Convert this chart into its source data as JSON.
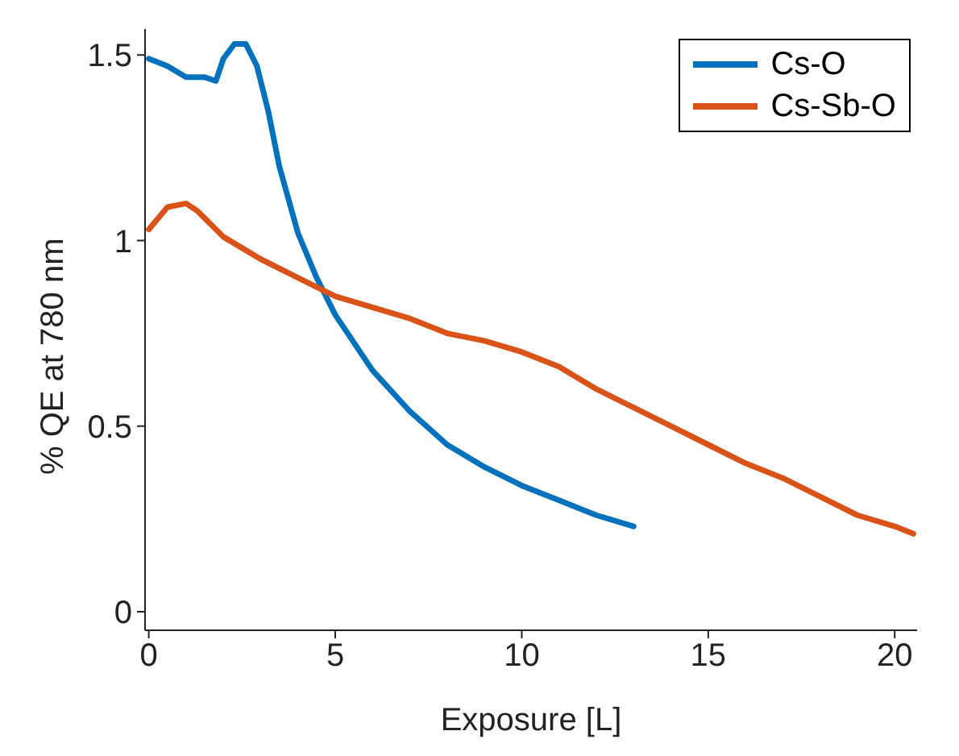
{
  "chart_data": {
    "type": "line",
    "xlabel": "Exposure [L]",
    "ylabel": "% QE at 780 nm",
    "xlim": [
      -0.1,
      20.6
    ],
    "xticks": [
      0,
      5,
      10,
      15,
      20
    ],
    "ylim": [
      -0.05,
      1.57
    ],
    "yticks": [
      0,
      0.5,
      1,
      1.5
    ],
    "grid": false,
    "legend": "top right",
    "marker": "none",
    "line_style": "solid",
    "series": [
      {
        "name": "Cs-O",
        "color": "#0072bd",
        "x": [
          0,
          0.5,
          1,
          1.5,
          1.8,
          2,
          2.3,
          2.6,
          2.9,
          3.2,
          3.5,
          4,
          4.5,
          5,
          6,
          7,
          8,
          9,
          10,
          11,
          12,
          13
        ],
        "values": [
          1.49,
          1.47,
          1.44,
          1.44,
          1.43,
          1.49,
          1.53,
          1.53,
          1.47,
          1.35,
          1.2,
          1.02,
          0.9,
          0.8,
          0.65,
          0.54,
          0.45,
          0.39,
          0.34,
          0.3,
          0.26,
          0.23
        ]
      },
      {
        "name": "Cs-Sb-O",
        "color": "#d95319",
        "x": [
          0,
          0.5,
          1,
          1.3,
          2,
          3,
          4,
          5,
          6,
          7,
          8,
          9,
          10,
          11,
          12,
          13,
          14,
          15,
          16,
          17,
          18,
          19,
          20,
          20.5
        ],
        "values": [
          1.03,
          1.09,
          1.1,
          1.08,
          1.01,
          0.95,
          0.9,
          0.85,
          0.82,
          0.79,
          0.75,
          0.73,
          0.7,
          0.66,
          0.6,
          0.55,
          0.5,
          0.45,
          0.4,
          0.36,
          0.31,
          0.26,
          0.23,
          0.21
        ]
      }
    ]
  }
}
